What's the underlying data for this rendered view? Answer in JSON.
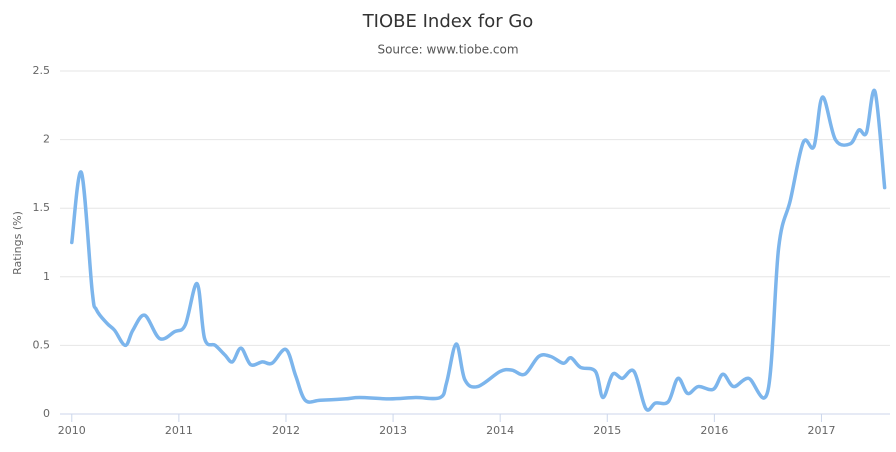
{
  "chart_data": {
    "type": "line",
    "title": "TIOBE Index for Go",
    "subtitle": "Source: www.tiobe.com",
    "y_label": "Ratings (%)",
    "color": "#7cb5ec",
    "x": [
      2010.0,
      2010.09,
      2010.19,
      2010.23,
      2010.33,
      2010.4,
      2010.5,
      2010.57,
      2010.68,
      2010.82,
      2010.96,
      2011.06,
      2011.17,
      2011.24,
      2011.34,
      2011.43,
      2011.5,
      2011.58,
      2011.67,
      2011.78,
      2011.87,
      2012.0,
      2012.09,
      2012.18,
      2012.32,
      2012.55,
      2012.69,
      2012.97,
      2013.21,
      2013.44,
      2013.5,
      2013.59,
      2013.67,
      2013.79,
      2014.0,
      2014.11,
      2014.23,
      2014.36,
      2014.47,
      2014.59,
      2014.66,
      2014.75,
      2014.89,
      2014.96,
      2015.05,
      2015.14,
      2015.25,
      2015.36,
      2015.45,
      2015.57,
      2015.66,
      2015.75,
      2015.85,
      2015.99,
      2016.08,
      2016.18,
      2016.32,
      2016.5,
      2016.6,
      2016.71,
      2016.83,
      2016.93,
      2017.01,
      2017.13,
      2017.27,
      2017.35,
      2017.42,
      2017.5,
      2017.59
    ],
    "values": [
      1.25,
      1.76,
      0.9,
      0.76,
      0.66,
      0.61,
      0.5,
      0.61,
      0.72,
      0.55,
      0.6,
      0.65,
      0.95,
      0.55,
      0.5,
      0.43,
      0.38,
      0.48,
      0.36,
      0.38,
      0.37,
      0.47,
      0.28,
      0.1,
      0.1,
      0.11,
      0.12,
      0.11,
      0.12,
      0.12,
      0.23,
      0.51,
      0.25,
      0.2,
      0.31,
      0.32,
      0.29,
      0.42,
      0.42,
      0.37,
      0.41,
      0.34,
      0.31,
      0.12,
      0.29,
      0.26,
      0.31,
      0.04,
      0.08,
      0.09,
      0.26,
      0.15,
      0.2,
      0.18,
      0.29,
      0.2,
      0.26,
      0.17,
      1.21,
      1.56,
      1.98,
      1.95,
      2.31,
      2.0,
      1.97,
      2.07,
      2.05,
      2.35,
      1.65
    ],
    "xlim": [
      2009.89,
      2017.64
    ],
    "xticks": [
      2010,
      2011,
      2012,
      2013,
      2014,
      2015,
      2016,
      2017
    ],
    "ylim": [
      0,
      2.5
    ],
    "yticks": [
      0,
      0.5,
      1,
      1.5,
      2,
      2.5
    ],
    "grid": true
  }
}
